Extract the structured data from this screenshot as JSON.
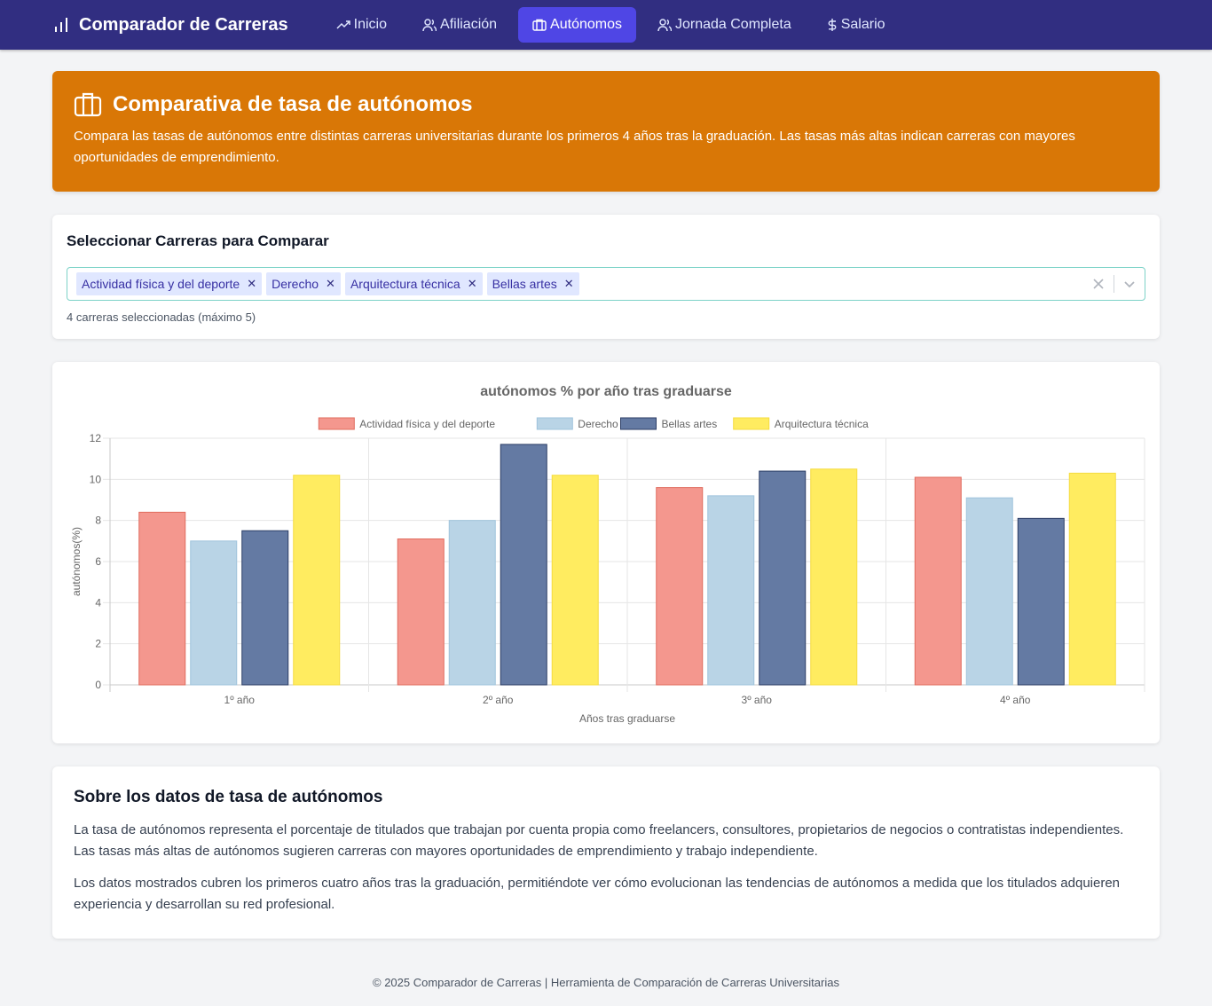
{
  "nav": {
    "brand": "Comparador de Carreras",
    "items": [
      {
        "label": "Inicio",
        "icon": "trending-up-icon"
      },
      {
        "label": "Afiliación",
        "icon": "users-icon"
      },
      {
        "label": "Autónomos",
        "icon": "briefcase-icon",
        "active": true
      },
      {
        "label": "Jornada Completa",
        "icon": "users-icon"
      },
      {
        "label": "Salario",
        "icon": "dollar-icon"
      }
    ]
  },
  "hero": {
    "title": "Comparativa de tasa de autónomos",
    "description": "Compara las tasas de autónomos entre distintas carreras universitarias durante los primeros 4 años tras la graduación. Las tasas más altas indican carreras con mayores oportunidades de emprendimiento."
  },
  "selector": {
    "title": "Seleccionar Carreras para Comparar",
    "chips": [
      "Actividad física y del deporte",
      "Derecho",
      "Arquitectura técnica",
      "Bellas artes"
    ],
    "hint": "4 carreras seleccionadas (máximo 5)"
  },
  "chart_data": {
    "type": "bar",
    "title": "autónomos % por año tras graduarse",
    "xlabel": "Años tras graduarse",
    "ylabel": "autónomos(%)",
    "ylim": [
      0,
      12
    ],
    "yticks": [
      0,
      2,
      4,
      6,
      8,
      10,
      12
    ],
    "categories": [
      "1º año",
      "2º año",
      "3º año",
      "4º año"
    ],
    "legend_position": "top",
    "grid": true,
    "series": [
      {
        "name": "Actividad física y del deporte",
        "color": "#f4978e",
        "border": "#e06c5e",
        "values": [
          8.4,
          7.1,
          9.6,
          10.1
        ]
      },
      {
        "name": "Derecho",
        "color": "#b9d4e6",
        "border": "#9fc3dc",
        "values": [
          7.0,
          8.0,
          9.2,
          9.1
        ]
      },
      {
        "name": "Bellas artes",
        "color": "#647aa3",
        "border": "#2c3e66",
        "values": [
          7.5,
          11.7,
          10.4,
          8.1
        ]
      },
      {
        "name": "Arquitectura técnica",
        "color": "#ffec60",
        "border": "#f5dc40",
        "values": [
          10.2,
          10.2,
          10.5,
          10.3
        ]
      }
    ]
  },
  "about": {
    "title": "Sobre los datos de tasa de autónomos",
    "p1": "La tasa de autónomos representa el porcentaje de titulados que trabajan por cuenta propia como freelancers, consultores, propietarios de negocios o contratistas independientes. Las tasas más altas de autónomos sugieren carreras con mayores oportunidades de emprendimiento y trabajo independiente.",
    "p2": "Los datos mostrados cubren los primeros cuatro años tras la graduación, permitiéndote ver cómo evolucionan las tendencias de autónomos a medida que los titulados adquieren experiencia y desarrollan su red profesional."
  },
  "footer": "© 2025 Comparador de Carreras | Herramienta de Comparación de Carreras Universitarias"
}
